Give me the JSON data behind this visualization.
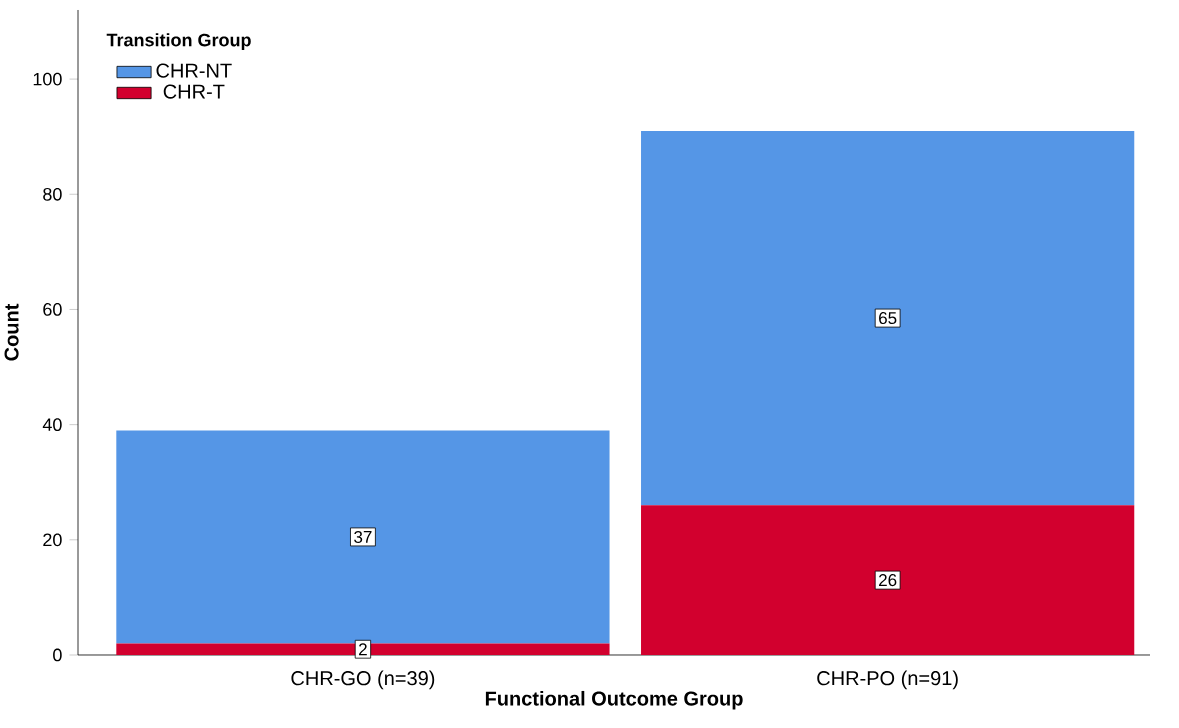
{
  "chart_data": {
    "type": "bar",
    "stacked": true,
    "xlabel": "Functional Outcome Group",
    "ylabel": "Count",
    "legend_title": "Transition Group",
    "categories": [
      "CHR-GO (n=39)",
      "CHR-PO (n=91)"
    ],
    "series": [
      {
        "name": "CHR-T",
        "color": "#d2002e",
        "values": [
          2,
          26
        ]
      },
      {
        "name": "CHR-NT",
        "color": "#5596e6",
        "values": [
          37,
          65
        ]
      }
    ],
    "ylim": [
      0,
      112
    ],
    "yticks": [
      0,
      20,
      40,
      60,
      80,
      100
    ],
    "grid": false,
    "legend": "top left",
    "data_labels": true
  }
}
